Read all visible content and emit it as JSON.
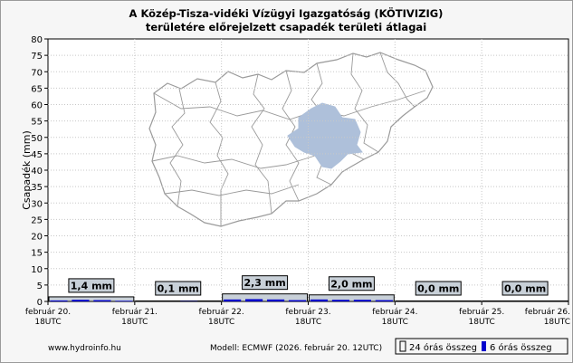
{
  "chart_data": {
    "type": "bar",
    "title_line1": "A Közép-Tisza-vidéki Vízügyi Igazgatóság (KÖTIVIZIG)",
    "title_line2": "területére előrejelzett csapadék területi átlagai",
    "ylabel": "Csapadék (mm)",
    "ylim": [
      0,
      80
    ],
    "ytick_step": 5,
    "x_ticks": [
      {
        "l1": "február 20.",
        "l2": "18UTC"
      },
      {
        "l1": "február 21.",
        "l2": "18UTC"
      },
      {
        "l1": "február 22.",
        "l2": "18UTC"
      },
      {
        "l1": "február 23.",
        "l2": "18UTC"
      },
      {
        "l1": "február 24.",
        "l2": "18UTC"
      },
      {
        "l1": "február 25.",
        "l2": "18UTC"
      },
      {
        "l1": "február 26.",
        "l2": "18UTC"
      }
    ],
    "daily_totals": [
      1.4,
      0.1,
      2.3,
      2.0,
      0.0,
      0.0
    ],
    "daily_labels": [
      "1,4 mm",
      "0,1 mm",
      "2,3 mm",
      "2,0 mm",
      "0,0 mm",
      "0,0 mm"
    ],
    "six_hourly": [
      [
        0.3,
        0.5,
        0.4,
        0.2
      ],
      [
        0.0,
        0.0,
        0.1,
        0.0
      ],
      [
        0.6,
        0.7,
        0.6,
        0.4
      ],
      [
        0.6,
        0.5,
        0.5,
        0.4
      ],
      [
        0.0,
        0.0,
        0.0,
        0.0
      ],
      [
        0.0,
        0.0,
        0.0,
        0.0
      ]
    ],
    "legend": {
      "daily": "24 órás összeg",
      "six_hour": "6 órás összeg"
    },
    "colors": {
      "daily_fill": "#c8d0d8",
      "six_hour_fill": "#0000cc",
      "map_region": "#aec0da",
      "map_outline": "#9a9a9a"
    }
  },
  "footer": {
    "source": "www.hydroinfo.hu",
    "model": "Modell: ECMWF (2026. február 20. 12UTC)"
  }
}
